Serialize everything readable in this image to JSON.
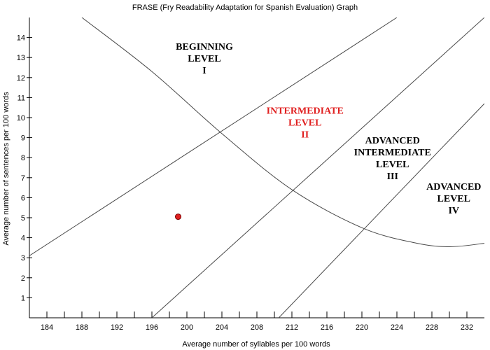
{
  "chart_data": {
    "type": "line",
    "title": "FRASE (Fry Readability Adaptation for Spanish Evaluation) Graph",
    "xlabel": "Average number of syllables per 100 words",
    "ylabel": "Average number of sentences per 100 words",
    "xlim": [
      182,
      234
    ],
    "ylim": [
      0,
      15
    ],
    "x_ticks": [
      184,
      188,
      192,
      196,
      200,
      204,
      208,
      212,
      216,
      220,
      224,
      228,
      232
    ],
    "x_minor_step": 2,
    "y_ticks": [
      1,
      2,
      3,
      4,
      5,
      6,
      7,
      8,
      9,
      10,
      11,
      12,
      13,
      14
    ],
    "grid": false,
    "boundary_lines": [
      {
        "points": [
          [
            182,
            3.1
          ],
          [
            224,
            15
          ]
        ]
      },
      {
        "points": [
          [
            196,
            0
          ],
          [
            234,
            15
          ]
        ]
      },
      {
        "points": [
          [
            210.5,
            0
          ],
          [
            234,
            10.7
          ]
        ]
      },
      {
        "points": [
          [
            188,
            15
          ],
          [
            196,
            12.3
          ],
          [
            204,
            9.2
          ],
          [
            212,
            6.4
          ],
          [
            220,
            4.5
          ],
          [
            226,
            3.75
          ],
          [
            230,
            3.55
          ],
          [
            234,
            3.72
          ]
        ]
      }
    ],
    "point": {
      "x": 199,
      "y": 5.05,
      "color": "#e02020"
    },
    "regions": [
      {
        "lines": [
          "BEGINNING",
          "LEVEL",
          "I"
        ],
        "x": 202,
        "y": 13.4,
        "color": "#000000"
      },
      {
        "lines": [
          "INTERMEDIATE",
          "LEVEL",
          "II"
        ],
        "x": 213.5,
        "y": 10.2,
        "color": "#e02020"
      },
      {
        "lines": [
          "ADVANCED",
          "INTERMEDIATE",
          "LEVEL",
          "III"
        ],
        "x": 223.5,
        "y": 8.7,
        "color": "#000000"
      },
      {
        "lines": [
          "ADVANCED",
          "LEVEL",
          "IV"
        ],
        "x": 230.5,
        "y": 6.4,
        "color": "#000000"
      }
    ]
  }
}
